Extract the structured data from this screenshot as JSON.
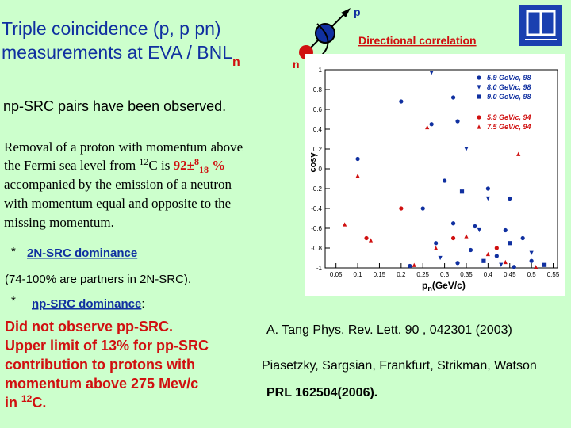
{
  "title": {
    "line1": "Triple coincidence  (p, p pn)",
    "line2": "measurements at EVA / BNL",
    "line2_sub": "n"
  },
  "diagram": {
    "p": "p",
    "n": "n",
    "gamma": "γ"
  },
  "heading": "Directional correlation",
  "statement": "np-SRC pairs have been observed.",
  "removal": {
    "line1": "Removal of a proton with momentum above",
    "line2_a": "the Fermi sea level from ",
    "line2_sup": "12",
    "line2_b": "C is ",
    "line2_val": "92±",
    "line2_valsup": "8",
    "line2_valsub": "18",
    "line2_unit": " %",
    "line3": "accompanied by the emission of a neutron",
    "line4": "with  momentum equal and opposite to the",
    "line5": "missing momentum."
  },
  "bullet1": {
    "star": "*",
    "text": "2N-SRC dominance"
  },
  "note": "(74-100% are partners in 2N-SRC).",
  "bullet2": {
    "star": "*",
    "text": "np-SRC dominance",
    "tail": ":"
  },
  "conclusion": {
    "line1": "Did not  observe  pp-SRC.",
    "line2": "Upper limit of 13% for pp-SRC",
    "line3": "contribution to protons with",
    "line4": "momentum above 275 Mev/c",
    "line5_a": "in ",
    "line5_sup": "12",
    "line5_b": "C."
  },
  "refs": {
    "ref1": "A.  Tang   Phys.  Rev.  Lett. 90 , 042301 (2003)",
    "ref2": "Piasetzky, Sargsian, Frankfurt, Strikman, Watson",
    "ref3": "PRL 162504(2006)."
  },
  "chart_data": {
    "type": "scatter",
    "x_label": {
      "main": "p",
      "sub": "n",
      "rest": "(GeV/c)"
    },
    "y_label": "cosγ",
    "xlim": [
      0.025,
      0.56
    ],
    "ylim": [
      -1,
      1
    ],
    "xticks": [
      0.05,
      0.1,
      0.15,
      0.2,
      0.25,
      0.3,
      0.35,
      0.4,
      0.45,
      0.5,
      0.55
    ],
    "yticks": [
      -1,
      -0.8,
      -0.6,
      -0.4,
      -0.2,
      0,
      0.2,
      0.4,
      0.6,
      0.8,
      1
    ],
    "legend": "upper right",
    "series": [
      {
        "name": "5.9 GeV/c, 98",
        "color": "#1030a0",
        "marker": "circle",
        "x": [
          0.32,
          0.2,
          0.27,
          0.33,
          0.1,
          0.3,
          0.4,
          0.45,
          0.25,
          0.32,
          0.37,
          0.44,
          0.48,
          0.28,
          0.36,
          0.42,
          0.5,
          0.33,
          0.22,
          0.46
        ],
        "y": [
          0.72,
          0.68,
          0.45,
          0.48,
          0.1,
          -0.12,
          -0.2,
          -0.3,
          -0.4,
          -0.55,
          -0.58,
          -0.62,
          -0.7,
          -0.75,
          -0.82,
          -0.88,
          -0.93,
          -0.95,
          -0.98,
          -0.99
        ]
      },
      {
        "name": "8.0 GeV/c, 98",
        "color": "#1030a0",
        "marker": "triangle-down",
        "x": [
          0.27,
          0.35,
          0.4,
          0.38,
          0.5,
          0.29,
          0.43
        ],
        "y": [
          0.97,
          0.2,
          -0.3,
          -0.62,
          -0.85,
          -0.9,
          -0.97
        ]
      },
      {
        "name": "9.0 GeV/c, 98",
        "color": "#1030a0",
        "marker": "square",
        "x": [
          0.34,
          0.45,
          0.39,
          0.53
        ],
        "y": [
          -0.23,
          -0.75,
          -0.93,
          -0.97
        ]
      },
      {
        "name": "5.9 GeV/c, 94",
        "color": "#d01010",
        "marker": "circle",
        "x": [
          0.12,
          0.2,
          0.32,
          0.42
        ],
        "y": [
          -0.7,
          -0.4,
          -0.7,
          -0.8
        ]
      },
      {
        "name": "7.5 GeV/c, 94",
        "color": "#d01010",
        "marker": "triangle",
        "x": [
          0.26,
          0.1,
          0.07,
          0.13,
          0.35,
          0.47,
          0.28,
          0.4,
          0.44,
          0.51,
          0.23
        ],
        "y": [
          0.42,
          -0.07,
          -0.56,
          -0.72,
          -0.68,
          0.15,
          -0.8,
          -0.86,
          -0.94,
          -0.99,
          -0.97
        ]
      }
    ]
  }
}
